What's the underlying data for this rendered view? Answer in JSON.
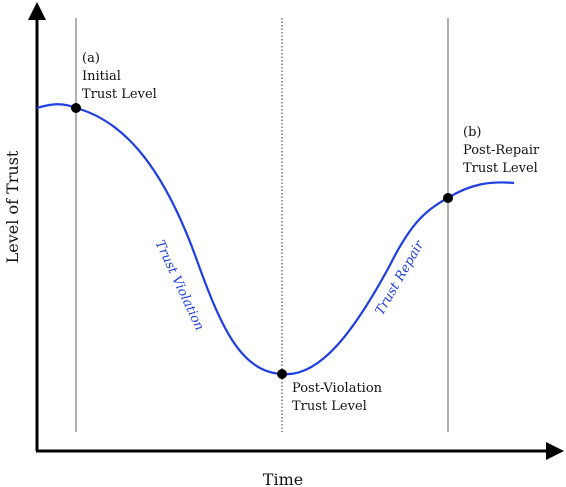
{
  "colors": {
    "curve": "#1f3fe0",
    "axis": "#000000",
    "guide": "#b0b0b0",
    "dotted_guide": "#555555",
    "point": "#000000"
  },
  "axes": {
    "x_label": "Time",
    "y_label": "Level of Trust"
  },
  "annotations": {
    "initial_tag": "(a)",
    "initial_line1": "Initial",
    "initial_line2": "Trust Level",
    "post_violation_line1": "Post-Violation",
    "post_violation_line2": "Trust Level",
    "post_repair_tag": "(b)",
    "post_repair_line1": "Post-Repair",
    "post_repair_line2": "Trust Level"
  },
  "curve_labels": {
    "violation": "Trust Violation",
    "repair": "Trust Repair"
  }
}
